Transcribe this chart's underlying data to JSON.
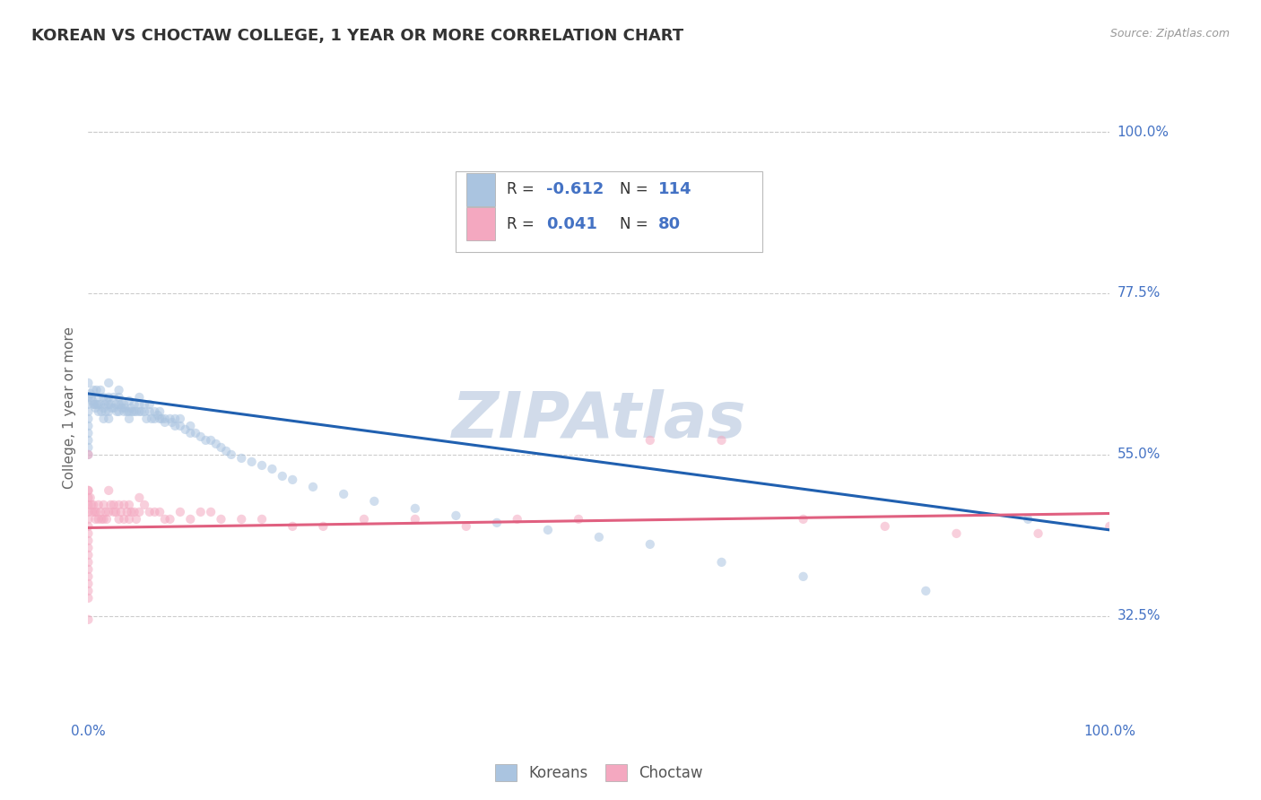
{
  "title": "KOREAN VS CHOCTAW COLLEGE, 1 YEAR OR MORE CORRELATION CHART",
  "source_text": "Source: ZipAtlas.com",
  "ylabel": "College, 1 year or more",
  "xlim": [
    0.0,
    1.0
  ],
  "ylim": [
    0.18,
    1.05
  ],
  "ytick_labels_right": [
    "100.0%",
    "77.5%",
    "55.0%",
    "32.5%"
  ],
  "ytick_positions_right": [
    1.0,
    0.775,
    0.55,
    0.325
  ],
  "color_korean": "#aac4e0",
  "color_choctaw": "#f4a8c0",
  "line_color_korean": "#2060b0",
  "line_color_choctaw": "#e06080",
  "background_color": "#ffffff",
  "grid_color": "#cccccc",
  "watermark_color": "#ccd8e8",
  "right_axis_label_color": "#4472c4",
  "axis_label_color": "#666666",
  "title_color": "#333333",
  "title_fontsize": 13,
  "label_fontsize": 11,
  "tick_fontsize": 11,
  "dot_size": 55,
  "dot_alpha": 0.55,
  "line_width": 2.2,
  "korean_line_x": [
    0.0,
    1.0
  ],
  "korean_line_y": [
    0.635,
    0.445
  ],
  "choctaw_line_x": [
    0.0,
    1.0
  ],
  "choctaw_line_y": [
    0.448,
    0.468
  ],
  "korean_x": [
    0.0,
    0.0,
    0.0,
    0.0,
    0.0,
    0.0,
    0.0,
    0.0,
    0.0,
    0.0,
    0.002,
    0.003,
    0.004,
    0.005,
    0.005,
    0.006,
    0.007,
    0.008,
    0.008,
    0.01,
    0.01,
    0.01,
    0.012,
    0.012,
    0.013,
    0.015,
    0.015,
    0.015,
    0.016,
    0.017,
    0.018,
    0.02,
    0.02,
    0.02,
    0.02,
    0.02,
    0.022,
    0.023,
    0.025,
    0.025,
    0.027,
    0.028,
    0.03,
    0.03,
    0.03,
    0.03,
    0.032,
    0.033,
    0.035,
    0.035,
    0.036,
    0.038,
    0.04,
    0.04,
    0.04,
    0.042,
    0.043,
    0.045,
    0.045,
    0.047,
    0.05,
    0.05,
    0.05,
    0.052,
    0.055,
    0.055,
    0.057,
    0.06,
    0.06,
    0.062,
    0.065,
    0.065,
    0.068,
    0.07,
    0.07,
    0.072,
    0.075,
    0.075,
    0.08,
    0.082,
    0.085,
    0.085,
    0.09,
    0.09,
    0.095,
    0.1,
    0.1,
    0.105,
    0.11,
    0.115,
    0.12,
    0.125,
    0.13,
    0.135,
    0.14,
    0.15,
    0.16,
    0.17,
    0.18,
    0.19,
    0.2,
    0.22,
    0.25,
    0.28,
    0.32,
    0.36,
    0.4,
    0.45,
    0.5,
    0.55,
    0.62,
    0.7,
    0.82,
    0.92
  ],
  "korean_y": [
    0.65,
    0.63,
    0.62,
    0.61,
    0.6,
    0.59,
    0.58,
    0.57,
    0.56,
    0.55,
    0.635,
    0.63,
    0.625,
    0.64,
    0.62,
    0.62,
    0.615,
    0.64,
    0.62,
    0.63,
    0.62,
    0.61,
    0.64,
    0.62,
    0.61,
    0.63,
    0.615,
    0.6,
    0.62,
    0.61,
    0.625,
    0.65,
    0.63,
    0.62,
    0.61,
    0.6,
    0.62,
    0.615,
    0.63,
    0.615,
    0.62,
    0.61,
    0.64,
    0.63,
    0.62,
    0.61,
    0.62,
    0.615,
    0.62,
    0.61,
    0.615,
    0.61,
    0.625,
    0.61,
    0.6,
    0.615,
    0.61,
    0.62,
    0.61,
    0.61,
    0.63,
    0.62,
    0.61,
    0.61,
    0.62,
    0.61,
    0.6,
    0.62,
    0.61,
    0.6,
    0.61,
    0.6,
    0.605,
    0.61,
    0.6,
    0.6,
    0.6,
    0.595,
    0.6,
    0.595,
    0.6,
    0.59,
    0.6,
    0.59,
    0.585,
    0.59,
    0.58,
    0.58,
    0.575,
    0.57,
    0.57,
    0.565,
    0.56,
    0.555,
    0.55,
    0.545,
    0.54,
    0.535,
    0.53,
    0.52,
    0.515,
    0.505,
    0.495,
    0.485,
    0.475,
    0.465,
    0.455,
    0.445,
    0.435,
    0.425,
    0.4,
    0.38,
    0.36,
    0.46
  ],
  "choctaw_x": [
    0.0,
    0.0,
    0.0,
    0.0,
    0.0,
    0.0,
    0.0,
    0.0,
    0.0,
    0.0,
    0.0,
    0.0,
    0.0,
    0.0,
    0.0,
    0.002,
    0.003,
    0.004,
    0.005,
    0.006,
    0.007,
    0.008,
    0.01,
    0.01,
    0.012,
    0.013,
    0.015,
    0.015,
    0.017,
    0.018,
    0.02,
    0.02,
    0.022,
    0.025,
    0.025,
    0.027,
    0.03,
    0.03,
    0.032,
    0.035,
    0.035,
    0.038,
    0.04,
    0.04,
    0.042,
    0.045,
    0.047,
    0.05,
    0.05,
    0.055,
    0.06,
    0.065,
    0.07,
    0.075,
    0.08,
    0.09,
    0.1,
    0.11,
    0.12,
    0.13,
    0.15,
    0.17,
    0.2,
    0.23,
    0.27,
    0.32,
    0.37,
    0.42,
    0.48,
    0.55,
    0.62,
    0.7,
    0.78,
    0.85,
    0.93,
    1.0,
    0.0,
    0.0,
    0.0,
    0.0
  ],
  "choctaw_y": [
    0.5,
    0.49,
    0.48,
    0.47,
    0.46,
    0.45,
    0.44,
    0.43,
    0.42,
    0.41,
    0.4,
    0.39,
    0.38,
    0.37,
    0.36,
    0.49,
    0.48,
    0.47,
    0.48,
    0.47,
    0.46,
    0.47,
    0.48,
    0.46,
    0.47,
    0.46,
    0.48,
    0.46,
    0.47,
    0.46,
    0.5,
    0.47,
    0.48,
    0.48,
    0.47,
    0.47,
    0.48,
    0.46,
    0.47,
    0.48,
    0.46,
    0.47,
    0.48,
    0.46,
    0.47,
    0.47,
    0.46,
    0.49,
    0.47,
    0.48,
    0.47,
    0.47,
    0.47,
    0.46,
    0.46,
    0.47,
    0.46,
    0.47,
    0.47,
    0.46,
    0.46,
    0.46,
    0.45,
    0.45,
    0.46,
    0.46,
    0.45,
    0.46,
    0.46,
    0.57,
    0.57,
    0.46,
    0.45,
    0.44,
    0.44,
    0.45,
    0.55,
    0.5,
    0.35,
    0.32
  ],
  "legend_r1_text": "R = ",
  "legend_r1_val": "-0.612",
  "legend_n1_text": "N = ",
  "legend_n1_val": "114",
  "legend_r2_text": "R = ",
  "legend_r2_val": "0.041",
  "legend_n2_text": "N = ",
  "legend_n2_val": "80",
  "legend_val_color": "#4472c4",
  "legend_text_color": "#333333"
}
